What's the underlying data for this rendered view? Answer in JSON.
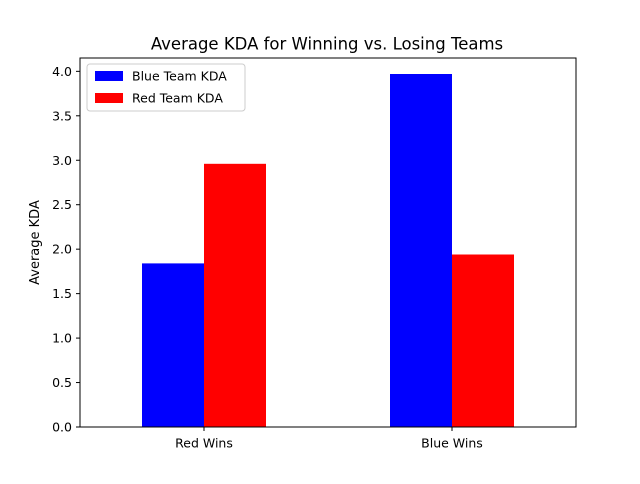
{
  "chart_data": {
    "type": "bar",
    "title": "Average KDA for Winning vs. Losing Teams",
    "xlabel": "",
    "ylabel": "Average KDA",
    "categories": [
      "Red Wins",
      "Blue Wins"
    ],
    "series": [
      {
        "name": "Blue Team KDA",
        "color": "#0000ff",
        "values": [
          1.84,
          3.97
        ]
      },
      {
        "name": "Red Team KDA",
        "color": "#ff0000",
        "values": [
          2.96,
          1.94
        ]
      }
    ],
    "ylim": [
      0,
      4.15
    ],
    "yticks": [
      "0.0",
      "0.5",
      "1.0",
      "1.5",
      "2.0",
      "2.5",
      "3.0",
      "3.5",
      "4.0"
    ],
    "grid": false,
    "legend_position": "top-left"
  }
}
